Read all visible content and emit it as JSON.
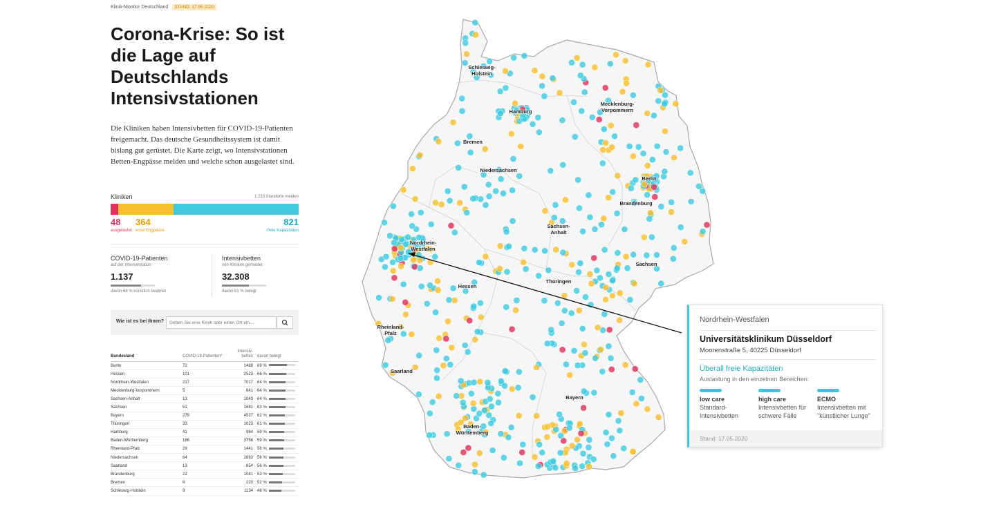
{
  "header": {
    "kicker": "Klinik-Monitor Deutschland",
    "stand": "STAND: 17.05.2020"
  },
  "title": "Corona-Krise: So ist die Lage auf Deutschlands Intensivstationen",
  "intro": "Die Kliniken haben Intensivbetten für COVID-19-Patienten freigemacht. Das deutsche Gesundheitssystem ist damit bislang gut gerüstet. Die Karte zeigt, wo Intensivstationen Betten-Engpässe melden und welche schon ausgelastet sind.",
  "clinics": {
    "title": "Kliniken",
    "note": "1.233 Standorte melden",
    "segments": [
      {
        "count": "48",
        "label": "ausgelastet",
        "color": "#e0315b",
        "value": 48
      },
      {
        "count": "364",
        "label": "erste Engpässe",
        "color": "#f8c02e",
        "value": 364
      },
      {
        "count": "821",
        "label": "freie Kapazitäten",
        "color": "#3ecbe0",
        "value": 821
      }
    ]
  },
  "stats": [
    {
      "title": "COVID-19-Patienten",
      "sub": "auf der Intensivstation",
      "value": "1.137",
      "pct": 68,
      "note": "davon 68 % künstlich beatmet"
    },
    {
      "title": "Intensivbetten",
      "sub": "von Kliniken gemeldet",
      "value": "32.308",
      "pct": 61,
      "note": "davon 61 % belegt"
    }
  ],
  "search": {
    "label": "Wie ist es bei Ihnen?",
    "placeholder": "Geben Sie eine Klinik oder einen Ort ein...",
    "icon": "search-icon"
  },
  "table": {
    "headers": [
      "Bundesland",
      "COVID-19-Patienten*",
      "Intensiv-betten",
      "davon belegt"
    ],
    "rows": [
      {
        "land": "Berlin",
        "patients": "72",
        "beds": "1488",
        "pct": "69 %",
        "v": 69
      },
      {
        "land": "Hessen",
        "patients": "101",
        "beds": "2523",
        "pct": "66 %",
        "v": 66
      },
      {
        "land": "Nordrhein-Westfalen",
        "patients": "217",
        "beds": "7017",
        "pct": "64 %",
        "v": 64
      },
      {
        "land": "Mecklenburg-Vorpommern",
        "patients": "5",
        "beds": "841",
        "pct": "64 %",
        "v": 64
      },
      {
        "land": "Sachsen-Anhalt",
        "patients": "13",
        "beds": "1043",
        "pct": "64 %",
        "v": 64
      },
      {
        "land": "Sachsen",
        "patients": "51",
        "beds": "1681",
        "pct": "63 %",
        "v": 63
      },
      {
        "land": "Bayern",
        "patients": "275",
        "beds": "4537",
        "pct": "62 %",
        "v": 62
      },
      {
        "land": "Thüringen",
        "patients": "33",
        "beds": "1023",
        "pct": "61 %",
        "v": 61
      },
      {
        "land": "Hamburg",
        "patients": "41",
        "beds": "984",
        "pct": "59 %",
        "v": 59
      },
      {
        "land": "Baden-Württemberg",
        "patients": "186",
        "beds": "3758",
        "pct": "59 %",
        "v": 59
      },
      {
        "land": "Rheinland-Pfalz",
        "patients": "29",
        "beds": "1441",
        "pct": "56 %",
        "v": 56
      },
      {
        "land": "Niedersachsen",
        "patients": "64",
        "beds": "2883",
        "pct": "56 %",
        "v": 56
      },
      {
        "land": "Saarland",
        "patients": "13",
        "beds": "654",
        "pct": "56 %",
        "v": 56
      },
      {
        "land": "Brandenburg",
        "patients": "22",
        "beds": "1081",
        "pct": "53 %",
        "v": 53
      },
      {
        "land": "Bremen",
        "patients": "6",
        "beds": "220",
        "pct": "52 %",
        "v": 52
      },
      {
        "land": "Schleswig-Holstein",
        "patients": "9",
        "beds": "1134",
        "pct": "48 %",
        "v": 48
      }
    ]
  },
  "map": {
    "state_labels": [
      "Schleswig-Holstein",
      "Mecklenburg-Vorpommern",
      "Hamburg",
      "Bremen",
      "Niedersachsen",
      "Berlin",
      "Brandenburg",
      "Sachsen-Anhalt",
      "Nordrhein-Westfalen",
      "Sachsen",
      "Thüringen",
      "Hessen",
      "Rheinland-Pfalz",
      "Saarland",
      "Bayern",
      "Baden-Württemberg"
    ],
    "colors": {
      "full": "#e0315b",
      "tight": "#f8c02e",
      "free": "#3ecbe0"
    }
  },
  "popup": {
    "state": "Nordrhein-Westfalen",
    "name": "Universitätsklinikum Düsseldorf",
    "address": "Moorenstraße 5, 40225 Düsseldorf",
    "capacity": "Überall freie Kapazitäten",
    "subtitle": "Auslastung in den einzelnen Bereichen:",
    "areas": [
      {
        "title": "low care",
        "desc1": "Standard-",
        "desc2": "Intensivbetten"
      },
      {
        "title": "high care",
        "desc1": "Intensivbetten für",
        "desc2": "schwere Fälle"
      },
      {
        "title": "ECMO",
        "desc1": "Intensivbetten mit",
        "desc2": "\"künstlicher Lunge\""
      }
    ],
    "stand": "Stand: 17.05.2020"
  }
}
